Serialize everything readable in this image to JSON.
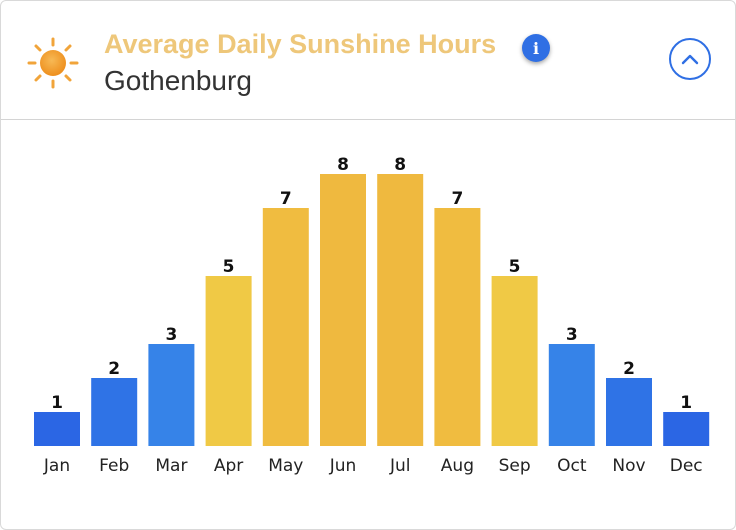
{
  "header": {
    "title": "Average Daily Sunshine Hours",
    "subtitle": "Gothenburg",
    "info_glyph": "i",
    "sun_icon": "sun-icon",
    "collapse_icon": "chevron-up-icon"
  },
  "colors": {
    "title": "#eec77a",
    "accent_blue": "#2f6fe4"
  },
  "chart_data": {
    "type": "bar",
    "categories": [
      "Jan",
      "Feb",
      "Mar",
      "Apr",
      "May",
      "Jun",
      "Jul",
      "Aug",
      "Sep",
      "Oct",
      "Nov",
      "Dec"
    ],
    "values": [
      1,
      2,
      3,
      5,
      7,
      8,
      8,
      7,
      5,
      3,
      2,
      1
    ],
    "bar_colors": [
      "#2b66e4",
      "#2f73e6",
      "#3683e8",
      "#f0c945",
      "#f0bc40",
      "#efb93f",
      "#efb93f",
      "#f0bc40",
      "#f0c945",
      "#3683e8",
      "#2f73e6",
      "#2b66e4"
    ],
    "data_labels": [
      "1",
      "2",
      "3",
      "5",
      "7",
      "8",
      "8",
      "7",
      "5",
      "3",
      "2",
      "1"
    ],
    "ylim": [
      0,
      8
    ],
    "grid": false,
    "legend": "none"
  }
}
